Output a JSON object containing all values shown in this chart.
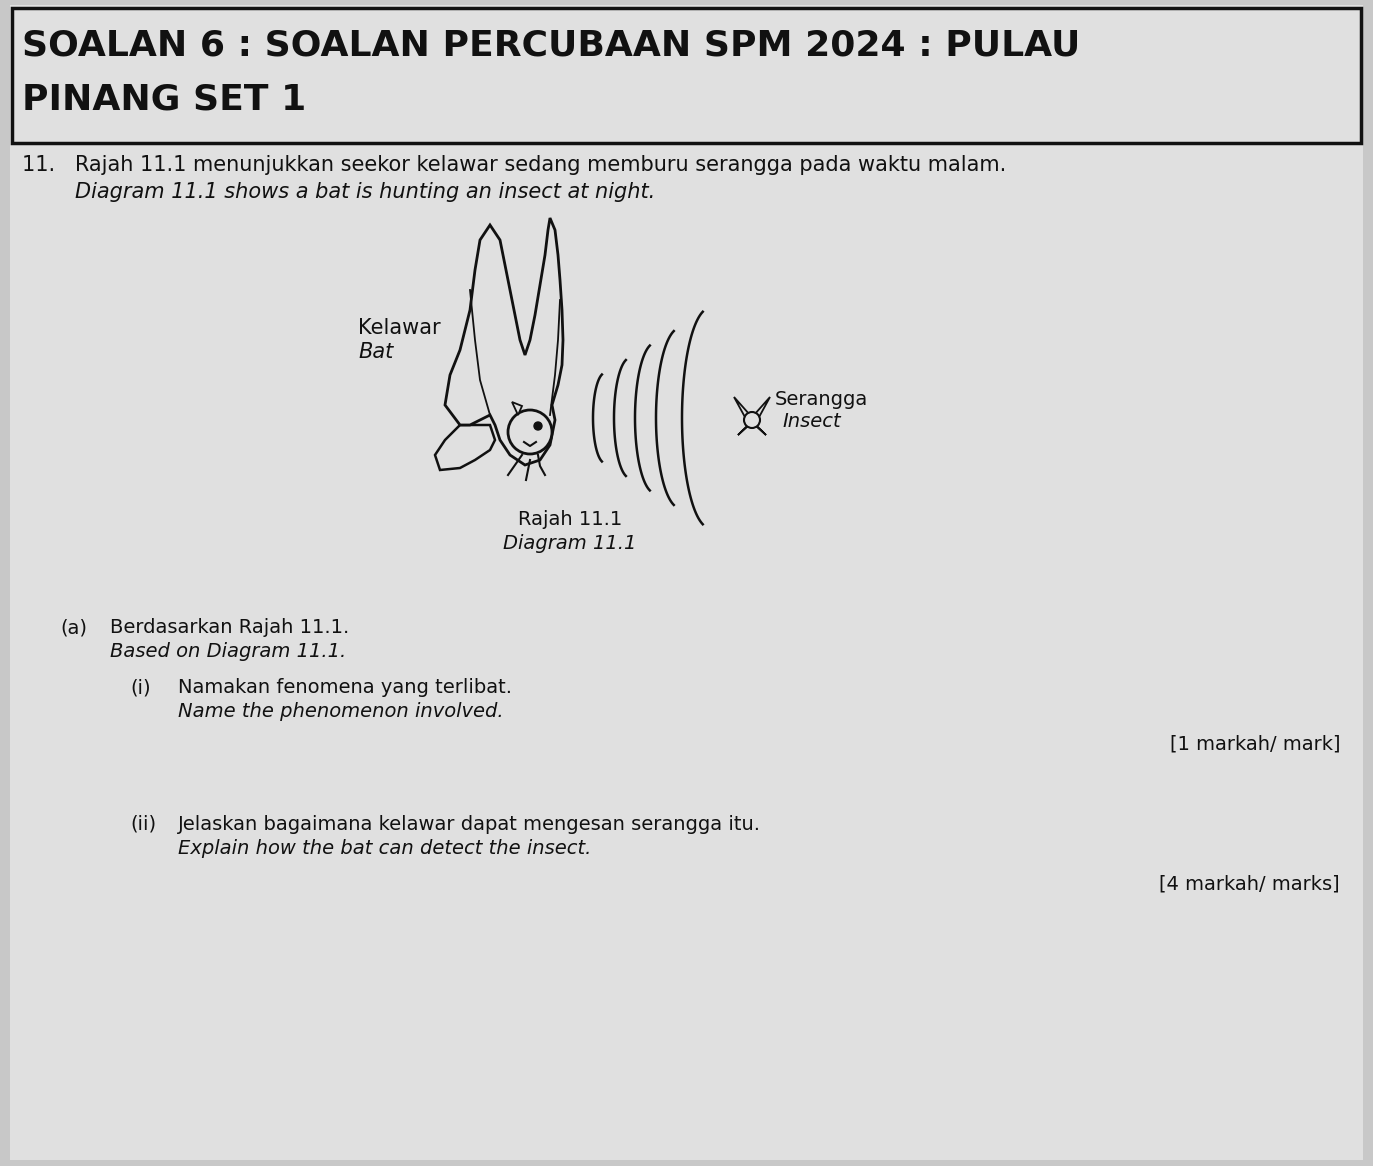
{
  "bg_color": "#c8c8c8",
  "paper_color": "#e0e0e0",
  "border_color": "#111111",
  "title_line1": "SOALAN 6 : SOALAN PERCUBAAN SPM 2024 : PULAU",
  "title_line2": "PINANG SET 1",
  "q11_text1": "11.   Rajah 11.1 menunjukkan seekor kelawar sedang memburu serangga pada waktu malam.",
  "q11_text2": "        Diagram 11.1 shows a bat is hunting an insect at night.",
  "diagram_caption1": "Rajah 11.1",
  "diagram_caption2": "Diagram 11.1",
  "kelawar_label1": "Kelawar",
  "kelawar_label2": "Bat",
  "serangga_label1": "Serangga",
  "serangga_label2": "Insect",
  "qa_label": "(a)",
  "qa_text1": "Berdasarkan Rajah 11.1.",
  "qa_text2": "Based on Diagram 11.1.",
  "qi_label": "(i)",
  "qi_text1": "Namakan fenomena yang terlibat.",
  "qi_text2": "Name the phenomenon involved.",
  "qi_marks": "[1 markah/ mark]",
  "qii_label": "(ii)",
  "qii_text1": "Jelaskan bagaimana kelawar dapat mengesan serangga itu.",
  "qii_text2": "Explain how the bat can detect the insect.",
  "qii_marks": "[4 markah/ marks]",
  "text_color": "#111111",
  "title_fontsize": 26,
  "body_fontsize": 14,
  "italic_fontsize": 14
}
